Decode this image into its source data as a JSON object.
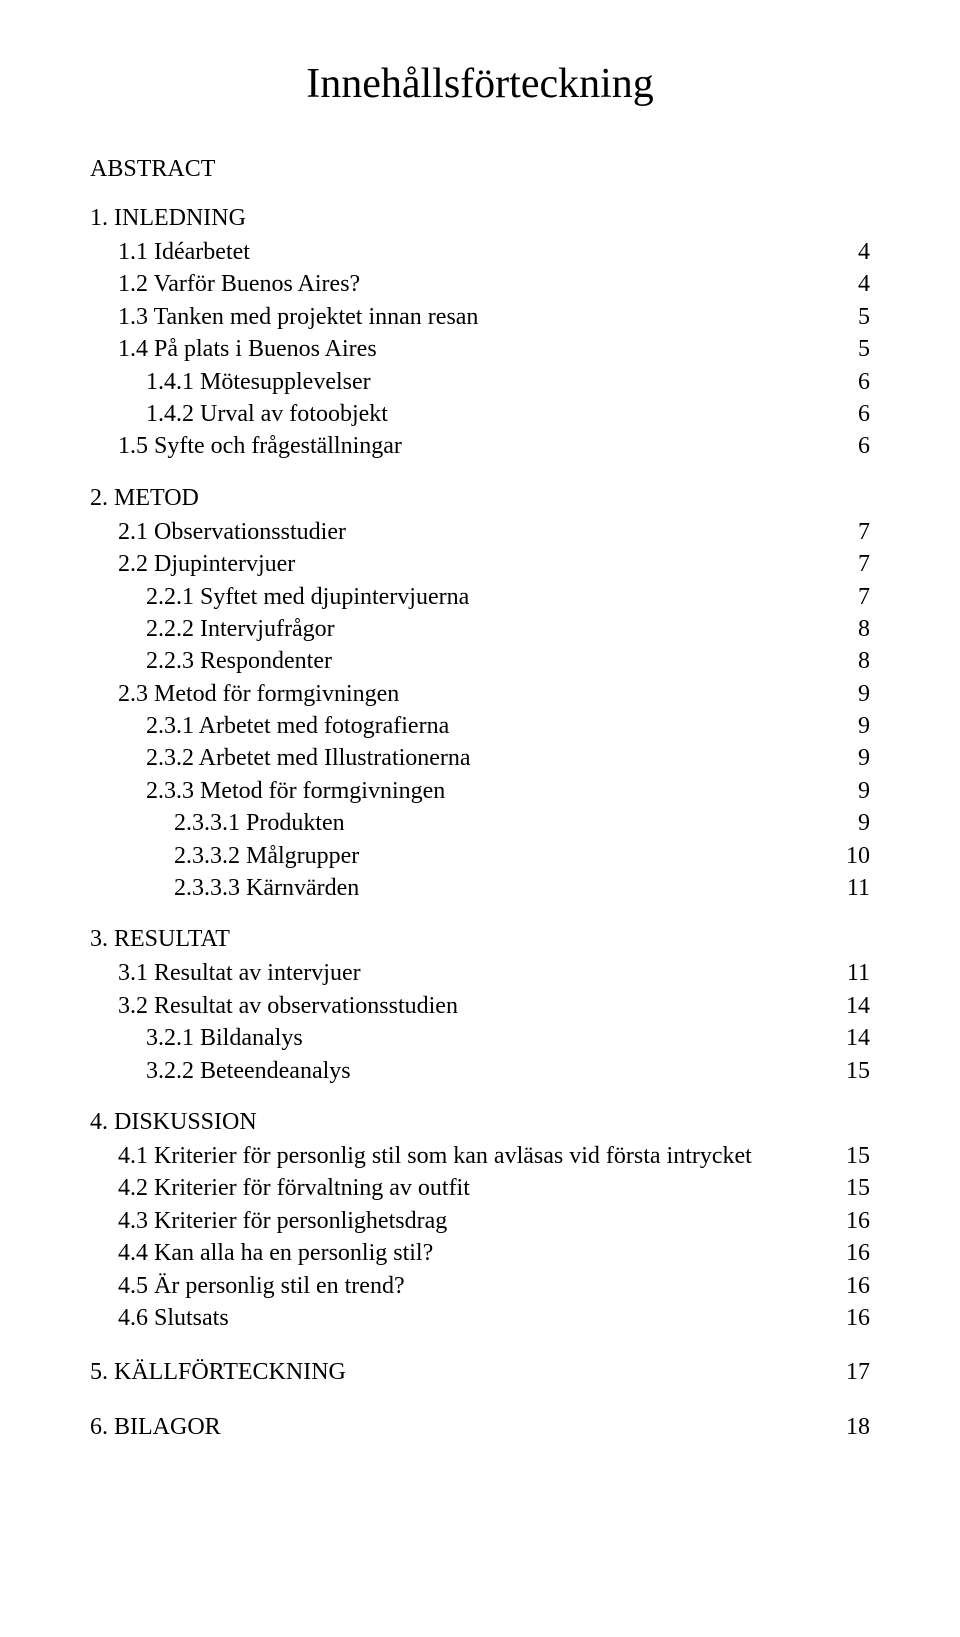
{
  "title": "Innehållsförteckning",
  "sections": [
    {
      "heading": "ABSTRACT",
      "entries": []
    },
    {
      "heading": "1. INLEDNING",
      "entries": [
        {
          "indent": 1,
          "label": "1.1 Idéarbetet",
          "page": "4"
        },
        {
          "indent": 1,
          "label": "1.2 Varför Buenos Aires?",
          "page": "4"
        },
        {
          "indent": 1,
          "label": "1.3 Tanken med projektet innan resan",
          "page": "5"
        },
        {
          "indent": 1,
          "label": "1.4 På plats i Buenos Aires",
          "page": "5"
        },
        {
          "indent": 2,
          "label": "1.4.1 Mötesupplevelser",
          "page": "6"
        },
        {
          "indent": 2,
          "label": "1.4.2 Urval av fotoobjekt",
          "page": "6"
        },
        {
          "indent": 1,
          "label": "1.5 Syfte och frågeställningar",
          "page": "6"
        }
      ]
    },
    {
      "heading": "2. METOD",
      "entries": [
        {
          "indent": 1,
          "label": "2.1 Observationsstudier",
          "page": "7"
        },
        {
          "indent": 1,
          "label": "2.2 Djupintervjuer",
          "page": "7"
        },
        {
          "indent": 2,
          "label": "2.2.1 Syftet med djupintervjuerna",
          "page": "7"
        },
        {
          "indent": 2,
          "label": "2.2.2 Intervjufrågor",
          "page": "8"
        },
        {
          "indent": 2,
          "label": "2.2.3 Respondenter",
          "page": "8"
        },
        {
          "indent": 1,
          "label": "2.3 Metod för formgivningen",
          "page": "9"
        },
        {
          "indent": 2,
          "label": "2.3.1 Arbetet med fotografierna",
          "page": "9"
        },
        {
          "indent": 2,
          "label": "2.3.2 Arbetet med Illustrationerna",
          "page": "9"
        },
        {
          "indent": 2,
          "label": "2.3.3 Metod för formgivningen",
          "page": "9"
        },
        {
          "indent": 3,
          "label": "2.3.3.1 Produkten",
          "page": "9"
        },
        {
          "indent": 3,
          "label": "2.3.3.2 Målgrupper",
          "page": "10"
        },
        {
          "indent": 3,
          "label": "2.3.3.3 Kärnvärden",
          "page": "11"
        }
      ]
    },
    {
      "heading": "3. RESULTAT",
      "entries": [
        {
          "indent": 1,
          "label": "3.1 Resultat av intervjuer",
          "page": "11"
        },
        {
          "indent": 1,
          "label": "3.2 Resultat av observationsstudien",
          "page": "14"
        },
        {
          "indent": 2,
          "label": "3.2.1 Bildanalys",
          "page": "14"
        },
        {
          "indent": 2,
          "label": "3.2.2 Beteendeanalys",
          "page": "15"
        }
      ]
    },
    {
      "heading": "4. DISKUSSION",
      "entries": [
        {
          "indent": 1,
          "label": "4.1 Kriterier för personlig stil som kan avläsas vid första intrycket",
          "page": "15"
        },
        {
          "indent": 1,
          "label": "4.2 Kriterier för förvaltning av outfit",
          "page": "15"
        },
        {
          "indent": 1,
          "label": "4.3 Kriterier för personlighetsdrag",
          "page": "16"
        },
        {
          "indent": 1,
          "label": "4.4 Kan alla ha en personlig stil?",
          "page": "16"
        },
        {
          "indent": 1,
          "label": "4.5 Är personlig stil en trend?",
          "page": "16"
        },
        {
          "indent": 1,
          "label": "4.6 Slutsats",
          "page": "16"
        }
      ]
    },
    {
      "heading": null,
      "entries": [
        {
          "indent": 0,
          "label": "5. KÄLLFÖRTECKNING",
          "page": "17"
        }
      ]
    },
    {
      "heading": null,
      "entries": [
        {
          "indent": 0,
          "label": "6. BILAGOR",
          "page": "18"
        }
      ]
    }
  ]
}
